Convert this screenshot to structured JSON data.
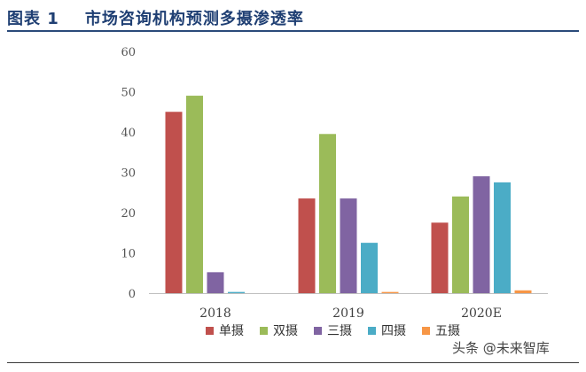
{
  "figure": {
    "label": "图表 1",
    "title": "市场咨询机构预测多摄渗透率",
    "watermark": "头条 @未来智库"
  },
  "chart_data": {
    "type": "bar",
    "title": "",
    "xlabel": "",
    "ylabel": "",
    "ylim": [
      0,
      60
    ],
    "yticks": [
      0,
      10,
      20,
      30,
      40,
      50,
      60
    ],
    "grid": false,
    "legend_position": "bottom",
    "categories": [
      "2018",
      "2019",
      "2020E"
    ],
    "series": [
      {
        "name": "单摄",
        "color": "#c0504d",
        "values": [
          45,
          23.5,
          17.5
        ]
      },
      {
        "name": "双摄",
        "color": "#9bbb59",
        "values": [
          49,
          39.5,
          24
        ]
      },
      {
        "name": "三摄",
        "color": "#8064a2",
        "values": [
          5.2,
          23.5,
          29
        ]
      },
      {
        "name": "四摄",
        "color": "#4bacc6",
        "values": [
          0.3,
          12.5,
          27.5
        ]
      },
      {
        "name": "五摄",
        "color": "#f79646",
        "values": [
          0,
          0.3,
          0.7
        ]
      }
    ]
  }
}
